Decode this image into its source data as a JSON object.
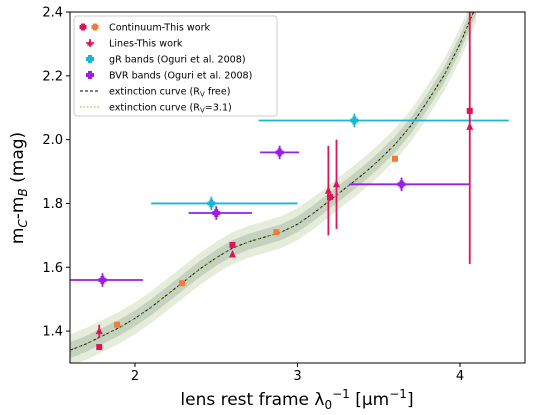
{
  "chart_data": {
    "type": "scatter",
    "xlabel": "lens rest frame λ₀⁻¹ [μm⁻¹]",
    "ylabel": "m_C-m_B (mag)",
    "xlim": [
      1.6,
      4.4
    ],
    "ylim": [
      1.3,
      2.4
    ],
    "xticks": [
      2,
      3,
      4
    ],
    "yticks": [
      1.4,
      1.6,
      1.8,
      2.0,
      2.2,
      2.4
    ],
    "xtick_labels": [
      "2",
      "3",
      "4"
    ],
    "ytick_labels": [
      "1.4",
      "1.6",
      "1.8",
      "2.0",
      "2.2",
      "2.4"
    ],
    "legend_position": "top-left",
    "legend": [
      {
        "label": "Continuum-This work",
        "style": "continuum"
      },
      {
        "label": "Lines-This work",
        "style": "lines"
      },
      {
        "label": "gR bands (Oguri et al. 2008)",
        "style": "gr"
      },
      {
        "label": "BVR bands (Oguri et al. 2008)",
        "style": "bvr"
      },
      {
        "label": "extinction curve (R_V free)",
        "style": "curve-free"
      },
      {
        "label": "extinction curve (R_V=3.1)",
        "style": "curve-31"
      }
    ],
    "colors": {
      "continuum_a": "#dc1459",
      "continuum_b": "#f07c3a",
      "lines": "#dc1459",
      "gr": "#17b6d8",
      "bvr": "#9b1de8",
      "curve_free": "#000000",
      "curve_31": "#9aa52b",
      "band_outer": "#e5ecd9",
      "band_inner": "#c5d2bf"
    },
    "series": [
      {
        "name": "Continuum-This work",
        "points": [
          {
            "x": 1.78,
            "y": 1.35,
            "c": "a"
          },
          {
            "x": 1.89,
            "y": 1.42,
            "c": "b"
          },
          {
            "x": 2.29,
            "y": 1.55,
            "c": "b"
          },
          {
            "x": 2.6,
            "y": 1.67,
            "c": "a"
          },
          {
            "x": 2.87,
            "y": 1.71,
            "c": "b"
          },
          {
            "x": 3.2,
            "y": 1.82,
            "c": "a"
          },
          {
            "x": 3.6,
            "y": 1.94,
            "c": "b"
          },
          {
            "x": 4.06,
            "y": 2.09,
            "c": "a"
          }
        ]
      },
      {
        "name": "Lines-This work",
        "points": [
          {
            "x": 1.78,
            "y": 1.4,
            "yerr": 0.02
          },
          {
            "x": 2.6,
            "y": 1.64,
            "yerr": 0
          },
          {
            "x": 3.19,
            "y": 1.84,
            "yerr": 0.14
          },
          {
            "x": 3.24,
            "y": 1.86,
            "yerr": 0.14
          },
          {
            "x": 4.06,
            "y": 2.04,
            "yerr": 0.43
          }
        ]
      },
      {
        "name": "gR bands (Oguri et al. 2008)",
        "points": [
          {
            "x": 2.47,
            "y": 1.8,
            "xmin": 2.1,
            "xmax": 3.0,
            "yerr": 0.015
          },
          {
            "x": 3.35,
            "y": 2.06,
            "xmin": 2.76,
            "xmax": 4.3,
            "yerr": 0.015
          }
        ]
      },
      {
        "name": "BVR bands (Oguri et al. 2008)",
        "points": [
          {
            "x": 1.8,
            "y": 1.56,
            "xmin": 1.6,
            "xmax": 2.05,
            "yerr": 0.015
          },
          {
            "x": 2.5,
            "y": 1.77,
            "xmin": 2.33,
            "xmax": 2.72,
            "yerr": 0.015
          },
          {
            "x": 2.89,
            "y": 1.96,
            "xmin": 2.77,
            "xmax": 3.01,
            "yerr": 0.015
          },
          {
            "x": 3.64,
            "y": 1.86,
            "xmin": 3.32,
            "xmax": 4.06,
            "yerr": 0.015
          }
        ]
      }
    ],
    "curve": {
      "x": [
        1.6,
        1.7,
        1.8,
        1.9,
        2.0,
        2.1,
        2.2,
        2.3,
        2.4,
        2.5,
        2.6,
        2.7,
        2.8,
        2.9,
        3.0,
        3.1,
        3.2,
        3.3,
        3.4,
        3.5,
        3.6,
        3.7,
        3.8,
        3.9,
        4.0,
        4.1
      ],
      "y": [
        1.34,
        1.36,
        1.385,
        1.41,
        1.44,
        1.475,
        1.515,
        1.555,
        1.595,
        1.63,
        1.66,
        1.68,
        1.695,
        1.71,
        1.735,
        1.77,
        1.81,
        1.85,
        1.89,
        1.935,
        1.985,
        2.045,
        2.12,
        2.2,
        2.3,
        2.42
      ],
      "band_inner": 0.025,
      "band_outer": 0.05
    }
  }
}
